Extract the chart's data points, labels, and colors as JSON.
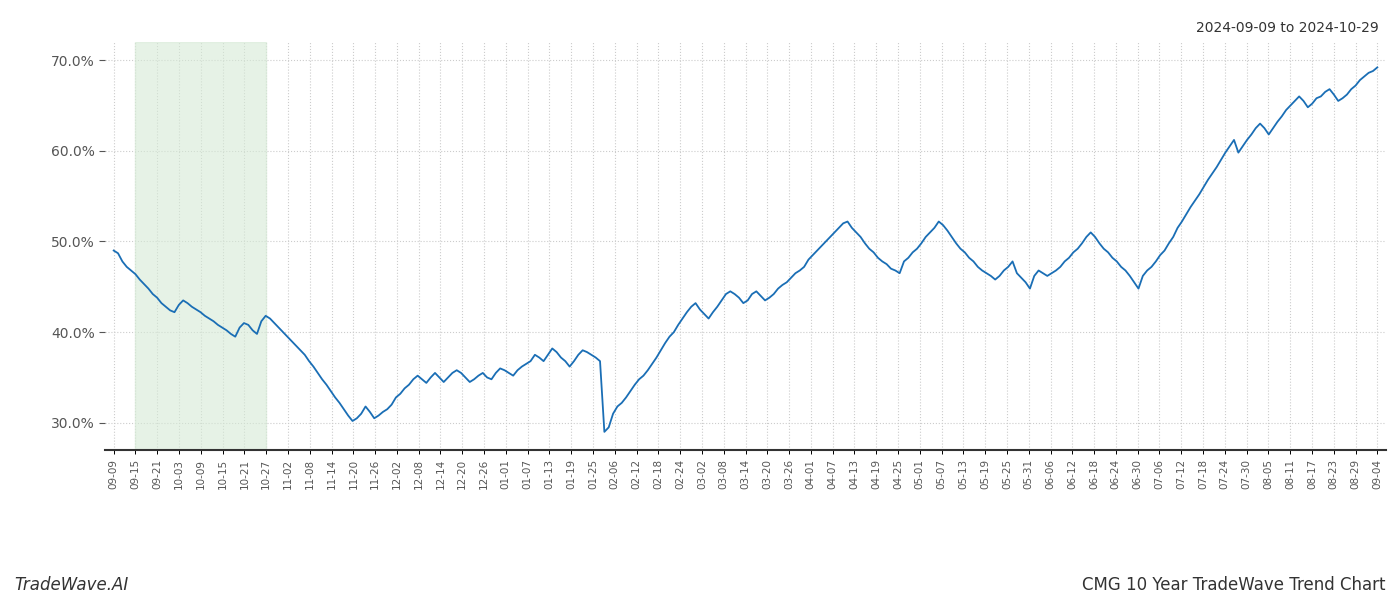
{
  "title_right": "2024-09-09 to 2024-10-29",
  "footer_left": "TradeWave.AI",
  "footer_right": "CMG 10 Year TradeWave Trend Chart",
  "line_color": "#1a6eb5",
  "line_width": 1.3,
  "bg_color": "#ffffff",
  "grid_color": "#cccccc",
  "shade_color": "#d6ead6",
  "shade_alpha": 0.6,
  "ylim": [
    0.27,
    0.72
  ],
  "yticks": [
    0.3,
    0.4,
    0.5,
    0.6,
    0.7
  ],
  "x_labels": [
    "09-09",
    "09-15",
    "09-21",
    "10-03",
    "10-09",
    "10-15",
    "10-21",
    "10-27",
    "11-02",
    "11-08",
    "11-14",
    "11-20",
    "11-26",
    "12-02",
    "12-08",
    "12-14",
    "12-20",
    "12-26",
    "01-01",
    "01-07",
    "01-13",
    "01-19",
    "01-25",
    "02-06",
    "02-12",
    "02-18",
    "02-24",
    "03-02",
    "03-08",
    "03-14",
    "03-20",
    "03-26",
    "04-01",
    "04-07",
    "04-13",
    "04-19",
    "04-25",
    "05-01",
    "05-07",
    "05-13",
    "05-19",
    "05-25",
    "05-31",
    "06-06",
    "06-12",
    "06-18",
    "06-24",
    "06-30",
    "07-06",
    "07-12",
    "07-18",
    "07-24",
    "07-30",
    "08-05",
    "08-11",
    "08-17",
    "08-23",
    "08-29",
    "09-04"
  ],
  "shade_start_label": "09-15",
  "shade_end_label": "10-27",
  "y_values": [
    0.49,
    0.487,
    0.478,
    0.472,
    0.468,
    0.464,
    0.458,
    0.453,
    0.448,
    0.442,
    0.438,
    0.432,
    0.428,
    0.424,
    0.422,
    0.43,
    0.435,
    0.432,
    0.428,
    0.425,
    0.422,
    0.418,
    0.415,
    0.412,
    0.408,
    0.405,
    0.402,
    0.398,
    0.395,
    0.405,
    0.41,
    0.408,
    0.402,
    0.398,
    0.412,
    0.418,
    0.415,
    0.41,
    0.405,
    0.4,
    0.395,
    0.39,
    0.385,
    0.38,
    0.375,
    0.368,
    0.362,
    0.355,
    0.348,
    0.342,
    0.335,
    0.328,
    0.322,
    0.315,
    0.308,
    0.302,
    0.305,
    0.31,
    0.318,
    0.312,
    0.305,
    0.308,
    0.312,
    0.315,
    0.32,
    0.328,
    0.332,
    0.338,
    0.342,
    0.348,
    0.352,
    0.348,
    0.344,
    0.35,
    0.355,
    0.35,
    0.345,
    0.35,
    0.355,
    0.358,
    0.355,
    0.35,
    0.345,
    0.348,
    0.352,
    0.355,
    0.35,
    0.348,
    0.355,
    0.36,
    0.358,
    0.355,
    0.352,
    0.358,
    0.362,
    0.365,
    0.368,
    0.375,
    0.372,
    0.368,
    0.375,
    0.382,
    0.378,
    0.372,
    0.368,
    0.362,
    0.368,
    0.375,
    0.38,
    0.378,
    0.375,
    0.372,
    0.368,
    0.29,
    0.295,
    0.31,
    0.318,
    0.322,
    0.328,
    0.335,
    0.342,
    0.348,
    0.352,
    0.358,
    0.365,
    0.372,
    0.38,
    0.388,
    0.395,
    0.4,
    0.408,
    0.415,
    0.422,
    0.428,
    0.432,
    0.425,
    0.42,
    0.415,
    0.422,
    0.428,
    0.435,
    0.442,
    0.445,
    0.442,
    0.438,
    0.432,
    0.435,
    0.442,
    0.445,
    0.44,
    0.435,
    0.438,
    0.442,
    0.448,
    0.452,
    0.455,
    0.46,
    0.465,
    0.468,
    0.472,
    0.48,
    0.485,
    0.49,
    0.495,
    0.5,
    0.505,
    0.51,
    0.515,
    0.52,
    0.522,
    0.515,
    0.51,
    0.505,
    0.498,
    0.492,
    0.488,
    0.482,
    0.478,
    0.475,
    0.47,
    0.468,
    0.465,
    0.478,
    0.482,
    0.488,
    0.492,
    0.498,
    0.505,
    0.51,
    0.515,
    0.522,
    0.518,
    0.512,
    0.505,
    0.498,
    0.492,
    0.488,
    0.482,
    0.478,
    0.472,
    0.468,
    0.465,
    0.462,
    0.458,
    0.462,
    0.468,
    0.472,
    0.478,
    0.465,
    0.46,
    0.455,
    0.448,
    0.462,
    0.468,
    0.465,
    0.462,
    0.465,
    0.468,
    0.472,
    0.478,
    0.482,
    0.488,
    0.492,
    0.498,
    0.505,
    0.51,
    0.505,
    0.498,
    0.492,
    0.488,
    0.482,
    0.478,
    0.472,
    0.468,
    0.462,
    0.455,
    0.448,
    0.462,
    0.468,
    0.472,
    0.478,
    0.485,
    0.49,
    0.498,
    0.505,
    0.515,
    0.522,
    0.53,
    0.538,
    0.545,
    0.552,
    0.56,
    0.568,
    0.575,
    0.582,
    0.59,
    0.598,
    0.605,
    0.612,
    0.598,
    0.605,
    0.612,
    0.618,
    0.625,
    0.63,
    0.625,
    0.618,
    0.625,
    0.632,
    0.638,
    0.645,
    0.65,
    0.655,
    0.66,
    0.655,
    0.648,
    0.652,
    0.658,
    0.66,
    0.665,
    0.668,
    0.662,
    0.655,
    0.658,
    0.662,
    0.668,
    0.672,
    0.678,
    0.682,
    0.686,
    0.688,
    0.692
  ]
}
